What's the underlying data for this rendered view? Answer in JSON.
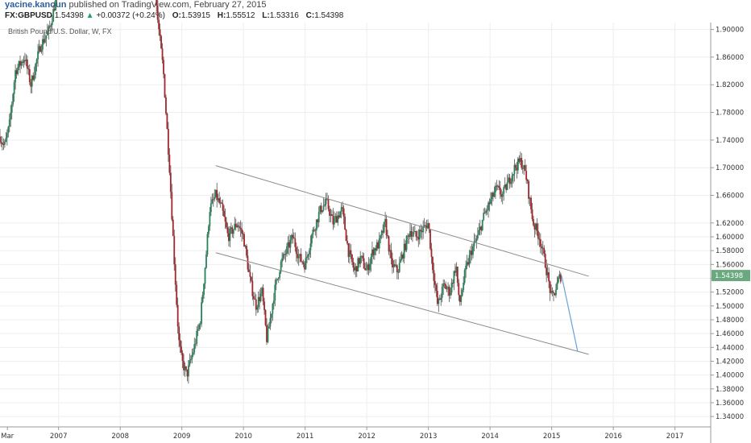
{
  "header": {
    "author": "yacine.kanoun",
    "published": "published on TradingView.com, February 27, 2015",
    "symbol": "FX:GBPUSD",
    "last": "1.54398",
    "change": "+0.00372 (+0.24%)",
    "o_label": "O:",
    "o_value": "1.53915",
    "h_label": "H:",
    "h_value": "1.55512",
    "l_label": "L:",
    "l_value": "1.53316",
    "c_label": "C:",
    "c_value": "1.54398"
  },
  "colors": {
    "up_candle": "#26835a",
    "down_candle": "#a3262a",
    "wick": "#555555",
    "channel": "#8a8a8a",
    "projection": "#6aa2d8",
    "price_badge": "#6aa880",
    "change_arrow": "#22a06b"
  },
  "chart_data": {
    "type": "candlestick",
    "title": "British Pound/U.S. Dollar, W, FX",
    "price_label": "1.54398",
    "ylim": [
      1.325,
      1.91
    ],
    "y_ticks": [
      "1.90000",
      "1.86000",
      "1.82000",
      "1.78000",
      "1.74000",
      "1.70000",
      "1.66000",
      "1.62000",
      "1.60000",
      "1.58000",
      "1.56000",
      "1.54000",
      "1.52000",
      "1.50000",
      "1.48000",
      "1.46000",
      "1.44000",
      "1.42000",
      "1.40000",
      "1.38000",
      "1.36000",
      "1.34000"
    ],
    "x_ticks": [
      "Mar",
      "2007",
      "2008",
      "2009",
      "2010",
      "2011",
      "2012",
      "2013",
      "2014",
      "2015",
      "2016",
      "2017"
    ],
    "x_tick_years": [
      2006.17,
      2007.0,
      2008.0,
      2009.0,
      2010.0,
      2011.0,
      2012.0,
      2013.0,
      2014.0,
      2015.0,
      2016.0,
      2017.0
    ],
    "xlim": [
      2006.05,
      2017.58
    ],
    "price_points": [
      [
        2006.05,
        1.745
      ],
      [
        2006.12,
        1.73
      ],
      [
        2006.2,
        1.76
      ],
      [
        2006.3,
        1.84
      ],
      [
        2006.45,
        1.86
      ],
      [
        2006.55,
        1.82
      ],
      [
        2006.7,
        1.875
      ],
      [
        2006.85,
        1.9
      ],
      [
        2007.0,
        1.96
      ],
      [
        2007.2,
        1.98
      ],
      [
        2008.55,
        1.985
      ],
      [
        2008.6,
        1.92
      ],
      [
        2008.7,
        1.84
      ],
      [
        2008.8,
        1.7
      ],
      [
        2008.88,
        1.56
      ],
      [
        2008.95,
        1.45
      ],
      [
        2009.0,
        1.42
      ],
      [
        2009.08,
        1.4
      ],
      [
        2009.2,
        1.44
      ],
      [
        2009.3,
        1.48
      ],
      [
        2009.4,
        1.58
      ],
      [
        2009.45,
        1.64
      ],
      [
        2009.55,
        1.66
      ],
      [
        2009.65,
        1.64
      ],
      [
        2009.75,
        1.6
      ],
      [
        2009.9,
        1.62
      ],
      [
        2010.0,
        1.6
      ],
      [
        2010.1,
        1.54
      ],
      [
        2010.2,
        1.5
      ],
      [
        2010.3,
        1.52
      ],
      [
        2010.38,
        1.45
      ],
      [
        2010.5,
        1.52
      ],
      [
        2010.6,
        1.56
      ],
      [
        2010.7,
        1.58
      ],
      [
        2010.8,
        1.6
      ],
      [
        2010.9,
        1.57
      ],
      [
        2011.0,
        1.56
      ],
      [
        2011.1,
        1.6
      ],
      [
        2011.25,
        1.64
      ],
      [
        2011.35,
        1.65
      ],
      [
        2011.45,
        1.62
      ],
      [
        2011.6,
        1.64
      ],
      [
        2011.7,
        1.58
      ],
      [
        2011.8,
        1.55
      ],
      [
        2011.9,
        1.57
      ],
      [
        2012.0,
        1.55
      ],
      [
        2012.1,
        1.58
      ],
      [
        2012.2,
        1.59
      ],
      [
        2012.3,
        1.62
      ],
      [
        2012.4,
        1.56
      ],
      [
        2012.5,
        1.55
      ],
      [
        2012.6,
        1.58
      ],
      [
        2012.7,
        1.61
      ],
      [
        2012.8,
        1.6
      ],
      [
        2012.9,
        1.61
      ],
      [
        2013.0,
        1.62
      ],
      [
        2013.05,
        1.57
      ],
      [
        2013.15,
        1.5
      ],
      [
        2013.25,
        1.53
      ],
      [
        2013.35,
        1.52
      ],
      [
        2013.45,
        1.56
      ],
      [
        2013.5,
        1.5
      ],
      [
        2013.6,
        1.55
      ],
      [
        2013.7,
        1.58
      ],
      [
        2013.8,
        1.6
      ],
      [
        2013.9,
        1.63
      ],
      [
        2014.0,
        1.65
      ],
      [
        2014.1,
        1.67
      ],
      [
        2014.2,
        1.66
      ],
      [
        2014.3,
        1.68
      ],
      [
        2014.4,
        1.7
      ],
      [
        2014.5,
        1.71
      ],
      [
        2014.58,
        1.69
      ],
      [
        2014.7,
        1.62
      ],
      [
        2014.8,
        1.6
      ],
      [
        2014.9,
        1.56
      ],
      [
        2015.0,
        1.51
      ],
      [
        2015.05,
        1.52
      ],
      [
        2015.12,
        1.54
      ],
      [
        2015.16,
        1.54398
      ]
    ],
    "annotations": [
      {
        "type": "line",
        "from": [
          2009.55,
          1.703
        ],
        "to": [
          2015.6,
          1.543
        ]
      },
      {
        "type": "line",
        "from": [
          2009.55,
          1.577
        ],
        "to": [
          2015.6,
          1.43
        ]
      },
      {
        "type": "line",
        "from": [
          2015.16,
          1.54398
        ],
        "to": [
          2015.42,
          1.435
        ]
      }
    ]
  }
}
